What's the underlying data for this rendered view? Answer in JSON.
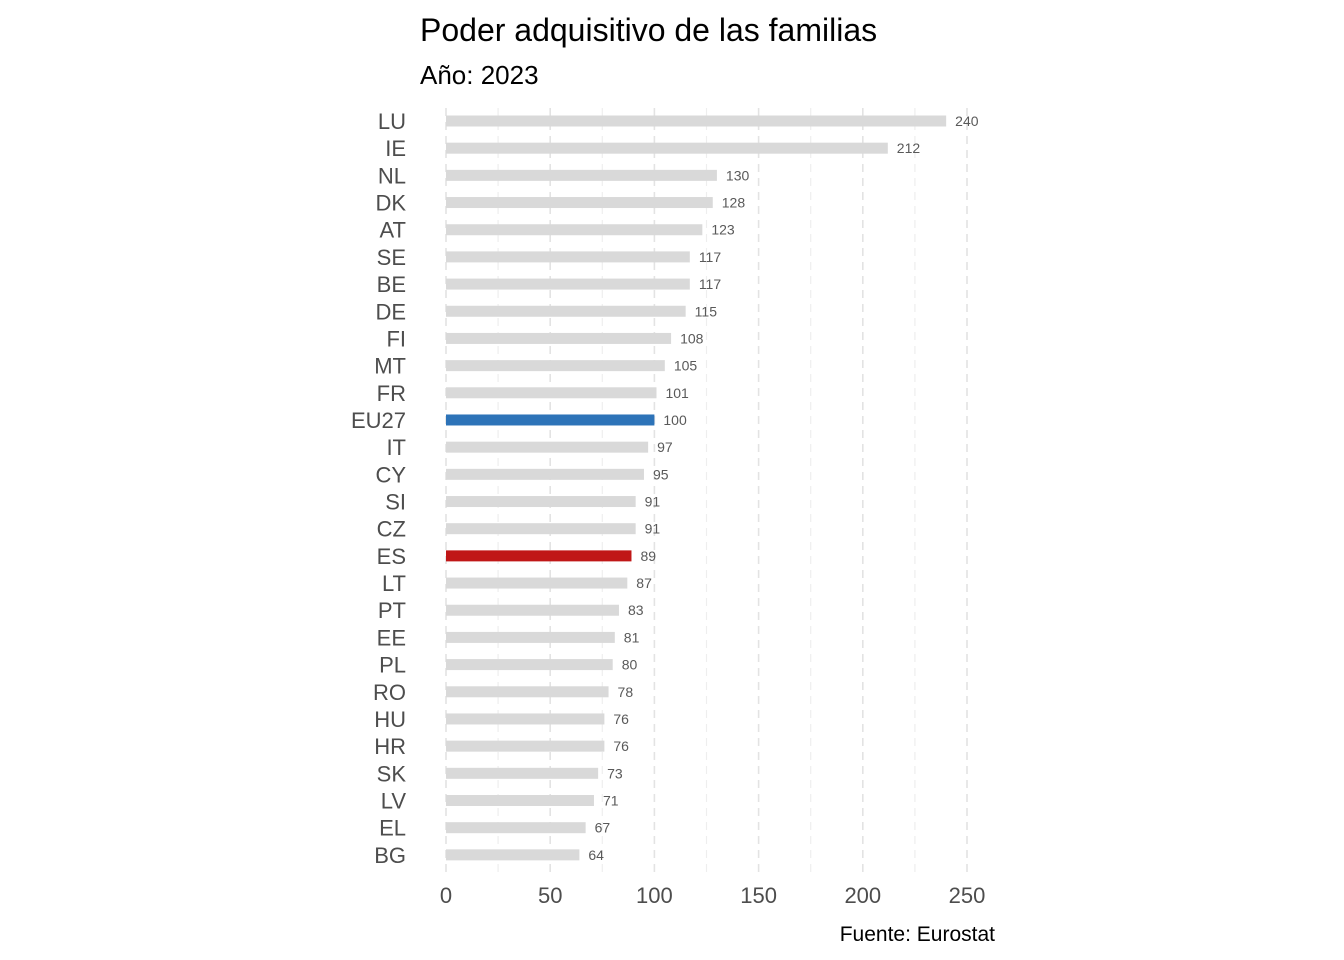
{
  "chart_data": {
    "type": "bar",
    "orientation": "horizontal",
    "title": "Poder adquisitivo de las familias",
    "subtitle": "Año: 2023",
    "caption": "Fuente: Eurostat",
    "xlabel": "",
    "ylabel": "",
    "xlim": [
      0,
      250
    ],
    "x_ticks": [
      0,
      50,
      100,
      150,
      200,
      250
    ],
    "x_tick_labels": [
      "0",
      "50",
      "100",
      "150",
      "200",
      "250"
    ],
    "grid": "vertical dashed",
    "legend": "none",
    "colors": {
      "default": "#d9d9d9",
      "EU27": "#2d73b8",
      "ES": "#c01717"
    },
    "categories": [
      "LU",
      "IE",
      "NL",
      "DK",
      "AT",
      "SE",
      "BE",
      "DE",
      "FI",
      "MT",
      "FR",
      "EU27",
      "IT",
      "CY",
      "SI",
      "CZ",
      "ES",
      "LT",
      "PT",
      "EE",
      "PL",
      "RO",
      "HU",
      "HR",
      "SK",
      "LV",
      "EL",
      "BG"
    ],
    "values": [
      240,
      212,
      130,
      128,
      123,
      117,
      117,
      115,
      108,
      105,
      101,
      100,
      97,
      95,
      91,
      91,
      89,
      87,
      83,
      81,
      80,
      78,
      76,
      76,
      73,
      71,
      67,
      64
    ],
    "value_labels": [
      "240",
      "212",
      "130",
      "128",
      "123",
      "117",
      "117",
      "115",
      "108",
      "105",
      "101",
      "100",
      "97",
      "95",
      "91",
      "91",
      "89",
      "87",
      "83",
      "81",
      "80",
      "78",
      "76",
      "76",
      "73",
      "71",
      "67",
      "64"
    ]
  }
}
